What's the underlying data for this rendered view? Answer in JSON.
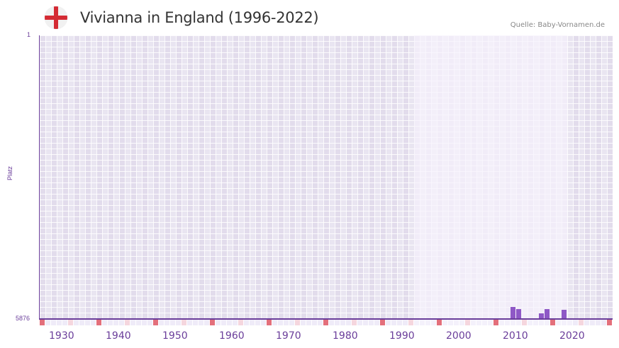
{
  "header": {
    "title": "Vivianna in England (1996-2022)",
    "flag_icon": "england-flag-icon",
    "source": "Quelle: Baby-Vornamen.de"
  },
  "colors": {
    "accent": "#6a3d9a",
    "bar": "#8e58c6",
    "decade_marker": "#e36f7b",
    "half_decade_marker": "#f5d6de",
    "grid_bg": "#e2dcec",
    "highlight_bg": "#f3f0fb"
  },
  "axis": {
    "y_top_label": "1",
    "y_bottom_label": "5876",
    "y_title": "Platz",
    "x_labels": [
      "1930",
      "1940",
      "1950",
      "1960",
      "1970",
      "1980",
      "1990",
      "2000",
      "2010",
      "2020"
    ]
  },
  "chart_data": {
    "type": "bar",
    "title": "Vivianna in England (1996-2022)",
    "xlabel": "",
    "ylabel": "Platz",
    "ylim": [
      5876,
      1
    ],
    "y_inverted": true,
    "x_range": [
      1928,
      2028
    ],
    "highlight_range": [
      1996,
      2022
    ],
    "grid": true,
    "legend": null,
    "x_tick_labels": [
      "1930",
      "1940",
      "1950",
      "1960",
      "1970",
      "1980",
      "1990",
      "2000",
      "2010",
      "2020"
    ],
    "categories": [
      "2011",
      "2012",
      "2016",
      "2017",
      "2020"
    ],
    "series": [
      {
        "name": "Platz (Rank)",
        "values": [
          5640,
          5680,
          5770,
          5680,
          5700
        ]
      }
    ],
    "annotation": "Quelle: Baby-Vornamen.de"
  }
}
